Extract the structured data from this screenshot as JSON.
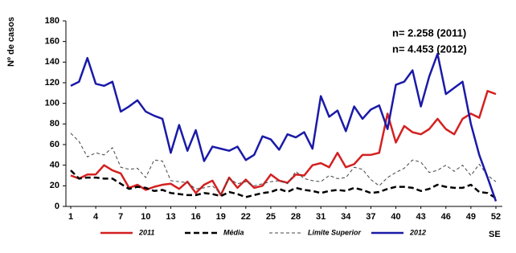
{
  "chart_data": {
    "type": "line",
    "ylabel": "Nº de casos",
    "xlabel": "SE",
    "annotations": [
      "n= 2.258 (2011)",
      "n= 4.453 (2012)"
    ],
    "x": [
      1,
      2,
      3,
      4,
      5,
      6,
      7,
      8,
      9,
      10,
      11,
      12,
      13,
      14,
      15,
      16,
      17,
      18,
      19,
      20,
      21,
      22,
      23,
      24,
      25,
      26,
      27,
      28,
      29,
      30,
      31,
      32,
      33,
      34,
      35,
      36,
      37,
      38,
      39,
      40,
      41,
      42,
      43,
      44,
      45,
      46,
      47,
      48,
      49,
      50,
      51,
      52
    ],
    "xlim": [
      1,
      52
    ],
    "xticks": [
      1,
      4,
      7,
      10,
      13,
      16,
      19,
      22,
      25,
      28,
      31,
      34,
      37,
      40,
      43,
      46,
      49,
      52
    ],
    "ylim": [
      0,
      180
    ],
    "yticks": [
      0,
      20,
      40,
      60,
      80,
      100,
      120,
      140,
      160,
      180
    ],
    "grid": false,
    "legend": "bottom",
    "series": [
      {
        "name": "2011",
        "color": "#d42020",
        "width": 2.5,
        "dash": "none",
        "values": [
          30,
          27,
          31,
          31,
          40,
          35,
          32,
          18,
          21,
          16,
          19,
          21,
          22,
          17,
          24,
          13,
          21,
          25,
          11,
          28,
          18,
          26,
          18,
          20,
          31,
          25,
          23,
          31,
          30,
          40,
          42,
          38,
          52,
          38,
          41,
          50,
          50,
          52,
          90,
          62,
          78,
          72,
          70,
          75,
          85,
          75,
          70,
          85,
          90,
          86,
          112,
          109
        ]
      },
      {
        "name": "Média",
        "color": "#000000",
        "width": 2.5,
        "dash": "7,4",
        "values": [
          35,
          27,
          28,
          28,
          27,
          27,
          22,
          17,
          19,
          18,
          15,
          16,
          13,
          12,
          11,
          11,
          13,
          12,
          10,
          14,
          12,
          9,
          11,
          13,
          14,
          17,
          14,
          18,
          16,
          15,
          13,
          15,
          16,
          15,
          18,
          16,
          13,
          14,
          17,
          19,
          19,
          18,
          15,
          17,
          21,
          19,
          18,
          18,
          21,
          14,
          13,
          8
        ]
      },
      {
        "name": "Limite Superior",
        "color": "#444444",
        "width": 1,
        "dash": "4,3",
        "values": [
          71,
          63,
          48,
          52,
          50,
          57,
          38,
          36,
          37,
          28,
          45,
          44,
          25,
          24,
          23,
          17,
          18,
          20,
          12,
          27,
          22,
          24,
          20,
          22,
          24,
          25,
          22,
          34,
          27,
          25,
          24,
          30,
          27,
          28,
          38,
          36,
          26,
          20,
          28,
          33,
          37,
          45,
          43,
          33,
          35,
          40,
          34,
          40,
          30,
          41,
          30,
          24
        ]
      },
      {
        "name": "2012",
        "color": "#1a1aa8",
        "width": 2.5,
        "dash": "none",
        "values": [
          117,
          121,
          144,
          119,
          117,
          121,
          92,
          97,
          103,
          92,
          88,
          85,
          52,
          79,
          54,
          74,
          44,
          58,
          56,
          54,
          58,
          45,
          50,
          68,
          65,
          55,
          70,
          67,
          72,
          56,
          107,
          87,
          93,
          73,
          97,
          85,
          94,
          98,
          75,
          118,
          121,
          132,
          97,
          126,
          148,
          109,
          115,
          121,
          80,
          50,
          28,
          5
        ]
      }
    ]
  }
}
